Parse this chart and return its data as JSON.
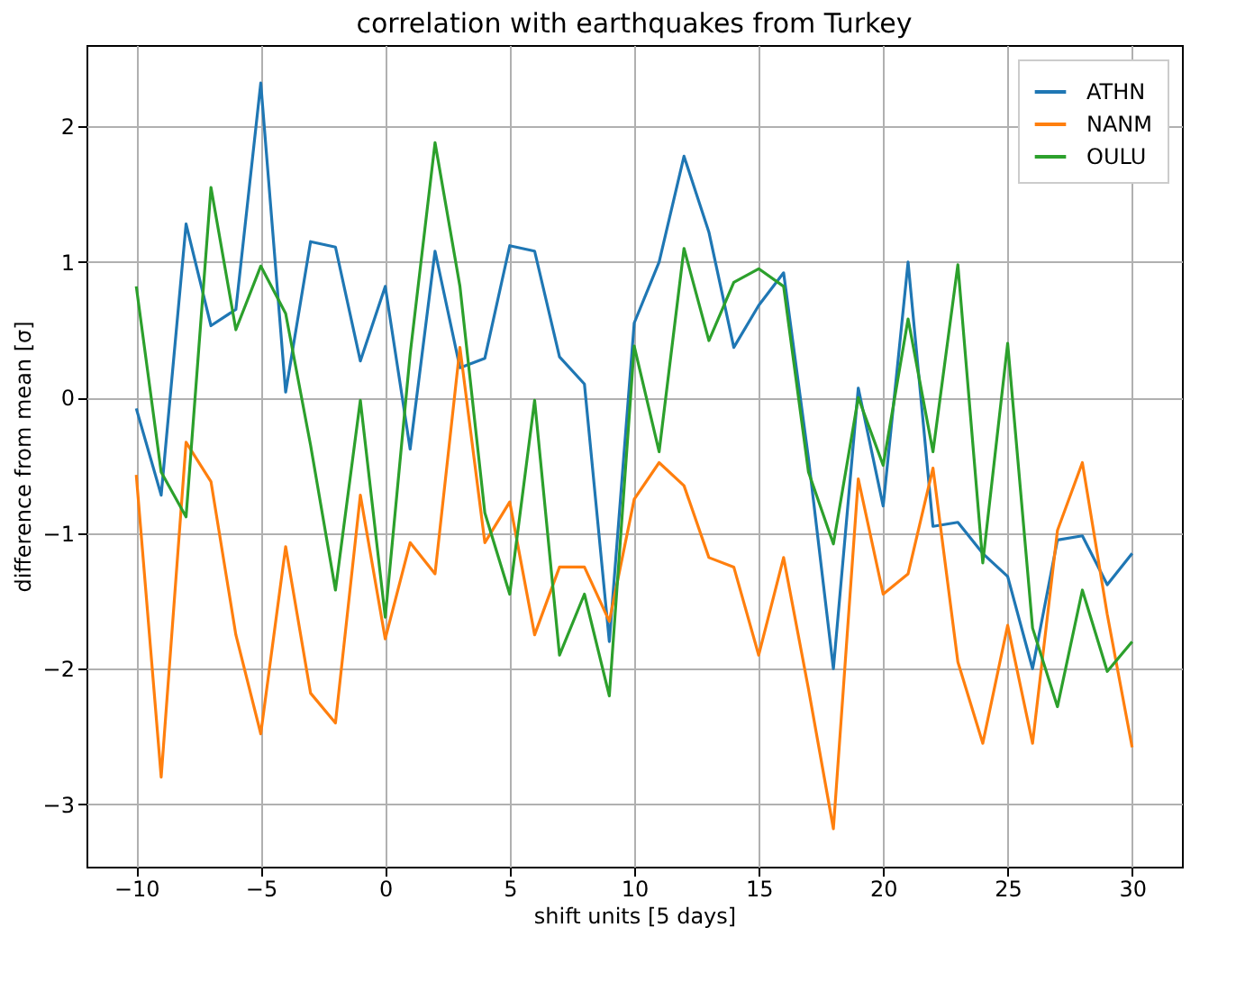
{
  "chart_data": {
    "type": "line",
    "title": "correlation with earthquakes from Turkey",
    "xlabel": "shift units [5 days]",
    "ylabel": "difference from mean [σ]",
    "x": [
      -10,
      -9,
      -8,
      -7,
      -6,
      -5,
      -4,
      -3,
      -2,
      -1,
      0,
      1,
      2,
      3,
      4,
      5,
      6,
      7,
      8,
      9,
      10,
      11,
      12,
      13,
      14,
      15,
      16,
      17,
      18,
      19,
      20,
      21,
      22,
      23,
      24,
      25,
      26,
      27,
      28,
      29,
      30
    ],
    "series": [
      {
        "name": "ATHN",
        "color": "#1f77b4",
        "values": [
          -0.08,
          -0.72,
          1.28,
          0.53,
          0.65,
          2.32,
          0.04,
          1.15,
          1.11,
          0.27,
          0.82,
          -0.38,
          1.08,
          0.22,
          0.29,
          1.12,
          1.08,
          0.3,
          0.1,
          -1.8,
          0.55,
          1.0,
          1.78,
          1.22,
          0.37,
          0.68,
          0.92,
          -0.45,
          -2.0,
          0.07,
          -0.8,
          1.0,
          -0.95,
          -0.92,
          -1.15,
          -1.32,
          -2.0,
          -1.05,
          -1.02,
          -1.38,
          -1.15
        ]
      },
      {
        "name": "NANM",
        "color": "#ff7f0e",
        "values": [
          -0.57,
          -2.8,
          -0.33,
          -0.62,
          -1.75,
          -2.48,
          -1.1,
          -2.18,
          -2.4,
          -0.72,
          -1.78,
          -1.07,
          -1.3,
          0.37,
          -1.07,
          -0.77,
          -1.75,
          -1.25,
          -1.25,
          -1.65,
          -0.75,
          -0.48,
          -0.65,
          -1.18,
          -1.25,
          -1.9,
          -1.18,
          -2.15,
          -3.18,
          -0.6,
          -1.45,
          -1.3,
          -0.52,
          -1.95,
          -2.55,
          -1.68,
          -2.55,
          -0.98,
          -0.48,
          -1.6,
          -2.58
        ]
      },
      {
        "name": "OULU",
        "color": "#2ca02c",
        "values": [
          0.82,
          -0.55,
          -0.88,
          1.55,
          0.5,
          0.97,
          0.62,
          -0.35,
          -1.42,
          -0.02,
          -1.62,
          0.32,
          1.88,
          0.82,
          -0.85,
          -1.45,
          -0.02,
          -1.9,
          -1.45,
          -2.2,
          0.38,
          -0.4,
          1.1,
          0.42,
          0.85,
          0.95,
          0.82,
          -0.55,
          -1.08,
          0.0,
          -0.5,
          0.58,
          -0.4,
          0.98,
          -1.22,
          0.4,
          -1.7,
          -2.28,
          -1.42,
          -2.02,
          -1.8
        ]
      }
    ],
    "xlim": [
      -12,
      32
    ],
    "xticks": [
      -10,
      -5,
      0,
      5,
      10,
      15,
      20,
      25,
      30
    ],
    "ylim": [
      -3.46,
      2.6
    ],
    "yticks": [
      -3,
      -2,
      -1,
      0,
      1,
      2
    ],
    "grid": true,
    "legend": "top right",
    "line_style": "solid",
    "marker": "none"
  }
}
